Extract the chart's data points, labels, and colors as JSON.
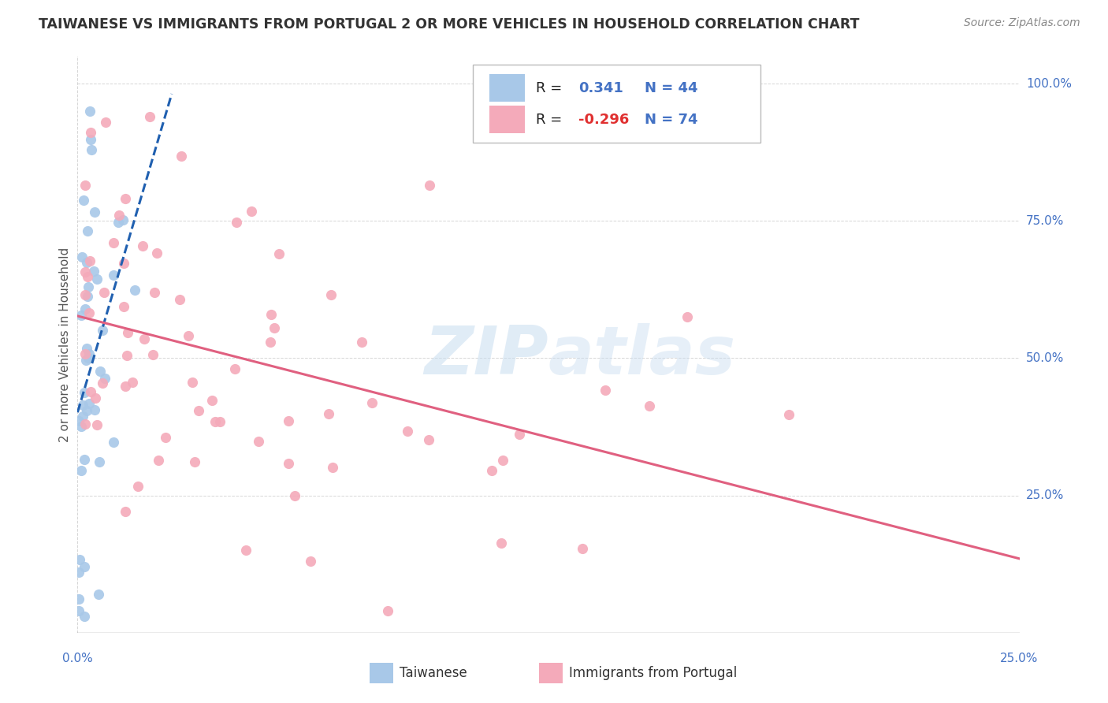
{
  "title": "TAIWANESE VS IMMIGRANTS FROM PORTUGAL 2 OR MORE VEHICLES IN HOUSEHOLD CORRELATION CHART",
  "source": "Source: ZipAtlas.com",
  "ylabel": "2 or more Vehicles in Household",
  "xlim": [
    0.0,
    0.25
  ],
  "ylim": [
    0.0,
    1.05
  ],
  "taiwan_R": 0.341,
  "taiwan_N": 44,
  "portugal_R": -0.296,
  "portugal_N": 74,
  "taiwan_color": "#a8c8e8",
  "portugal_color": "#f4aaba",
  "taiwan_line_color": "#2060b0",
  "portugal_line_color": "#e06080",
  "watermark_color": "#c8ddf0",
  "background_color": "#ffffff",
  "grid_color": "#cccccc",
  "legend_R_color": "#333333",
  "legend_val_tw_color": "#4472c4",
  "legend_val_pt_color": "#e03030",
  "legend_N_color": "#4472c4",
  "right_tick_color": "#4472c4",
  "bottom_tick_color": "#4472c4",
  "title_color": "#333333",
  "source_color": "#888888",
  "ylabel_color": "#555555"
}
